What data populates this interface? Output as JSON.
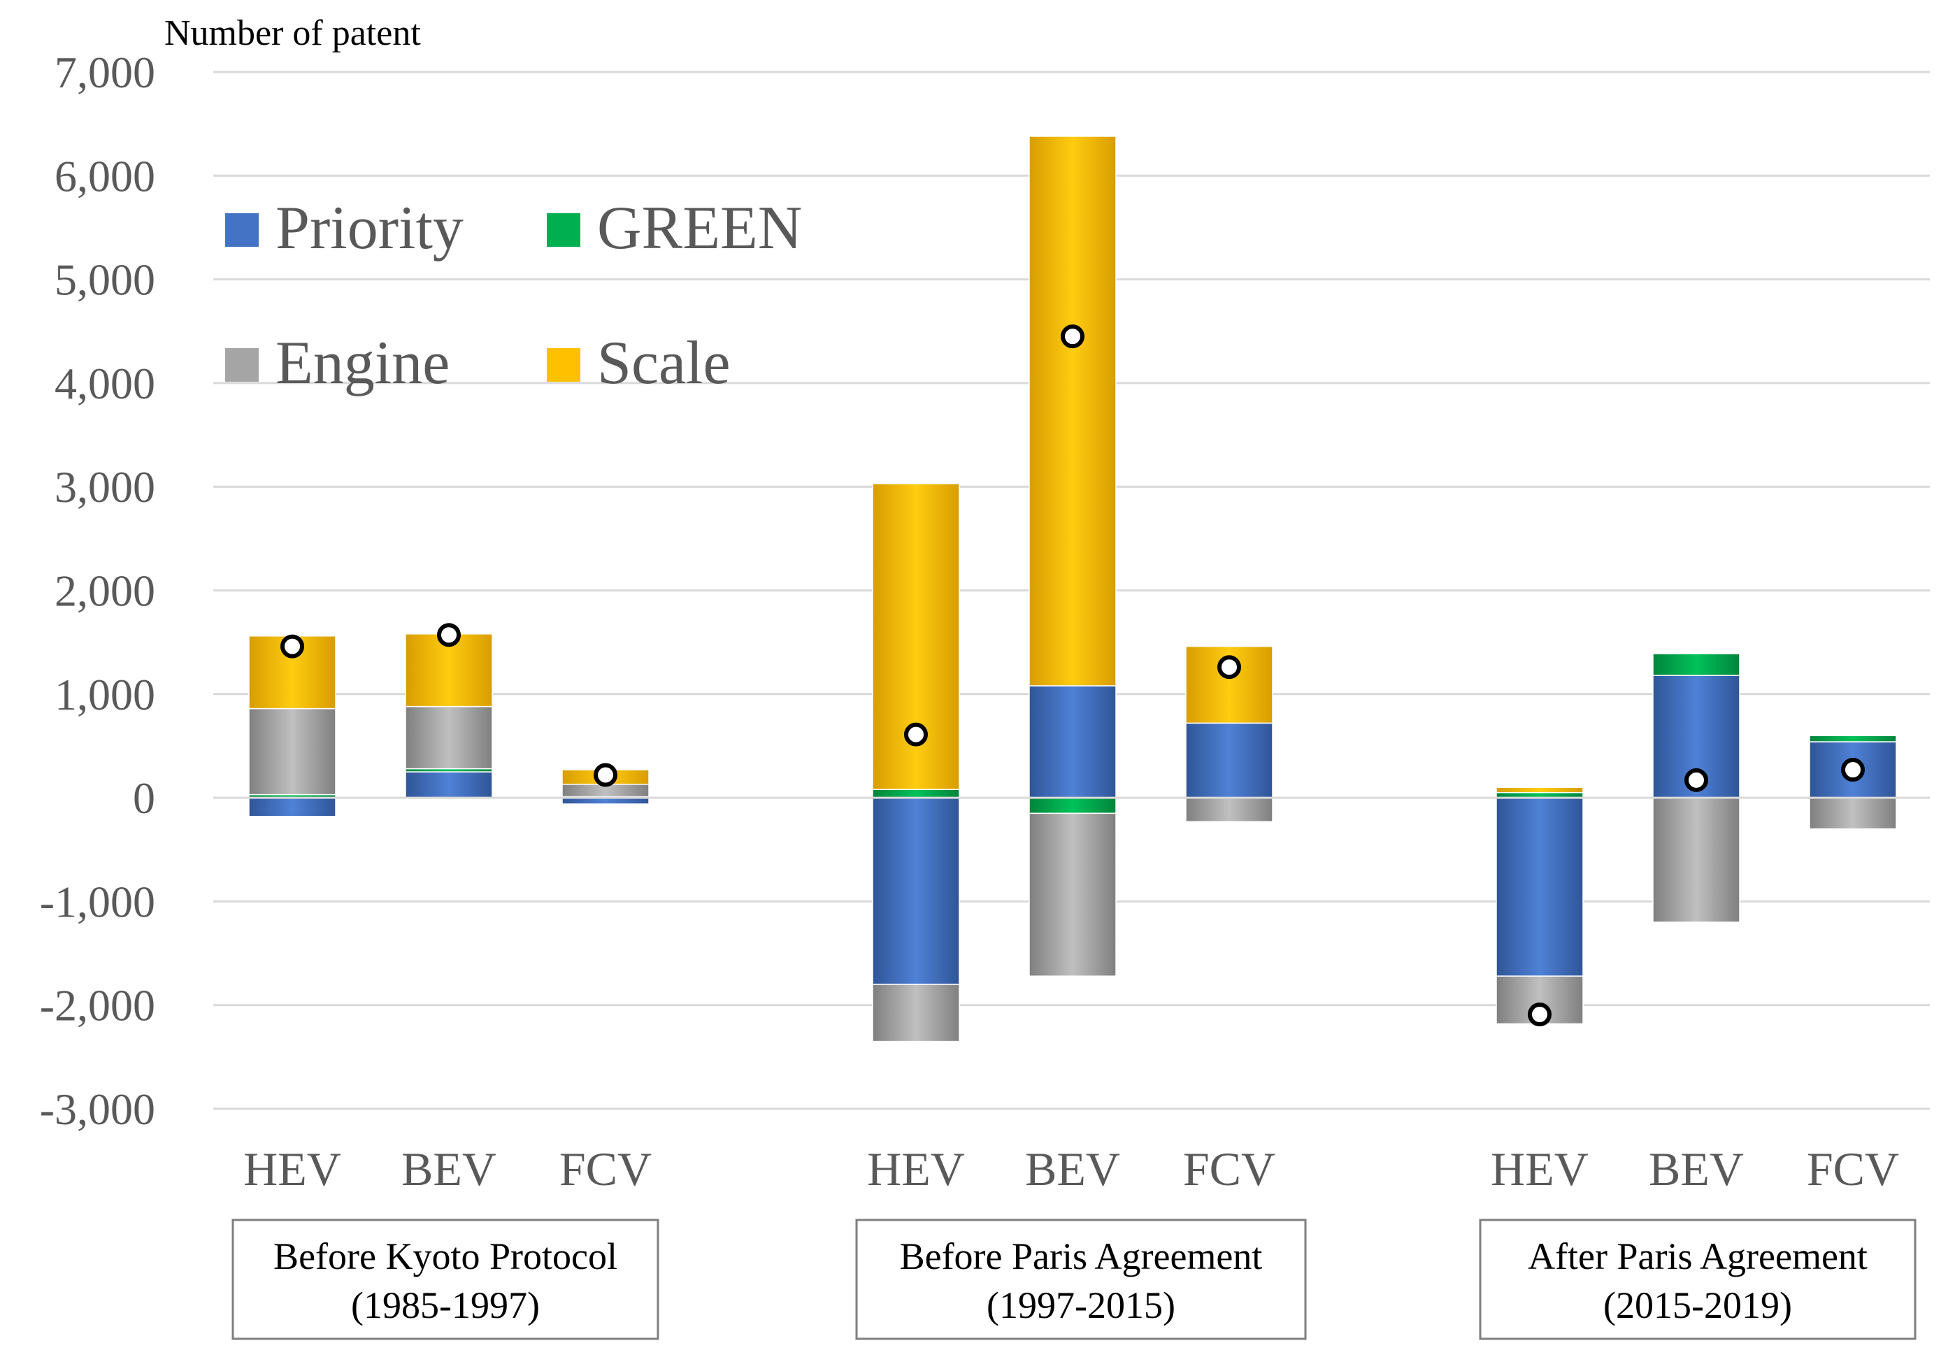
{
  "chart_data": {
    "type": "bar",
    "stacked": true,
    "ylabel": "Number of patent",
    "ylim": [
      -3000,
      7000
    ],
    "yticks": [
      7000,
      6000,
      5000,
      4000,
      3000,
      2000,
      1000,
      0,
      -1000,
      -2000,
      -3000
    ],
    "ytick_labels": [
      "7,000",
      "6,000",
      "5,000",
      "4,000",
      "3,000",
      "2,000",
      "1,000",
      "0",
      "-1,000",
      "-2,000",
      "-3,000"
    ],
    "grid": true,
    "legend_position": "top-left",
    "groups": [
      {
        "label_line1": "Before Kyoto Protocol",
        "label_line2": "(1985-1997)"
      },
      {
        "label_line1": "Before Paris Agreement",
        "label_line2": "(1997-2015)"
      },
      {
        "label_line1": "After Paris Agreement",
        "label_line2": "(2015-2019)"
      }
    ],
    "categories": [
      "HEV",
      "BEV",
      "FCV",
      "HEV",
      "BEV",
      "FCV",
      "HEV",
      "BEV",
      "FCV"
    ],
    "category_group": [
      0,
      0,
      0,
      1,
      1,
      1,
      2,
      2,
      2
    ],
    "series": [
      {
        "name": "Priority",
        "color": "#4472c4",
        "values": [
          -180,
          250,
          -60,
          -1800,
          1080,
          720,
          -1720,
          1180,
          540
        ]
      },
      {
        "name": "GREEN",
        "color": "#00b050",
        "values": [
          30,
          30,
          10,
          80,
          -150,
          0,
          50,
          210,
          60
        ]
      },
      {
        "name": "Engine",
        "color": "#a5a5a5",
        "values": [
          830,
          600,
          120,
          -550,
          -1570,
          -230,
          -460,
          -1200,
          -300
        ]
      },
      {
        "name": "Scale",
        "color": "#ffc000",
        "values": [
          700,
          700,
          140,
          2950,
          5300,
          740,
          50,
          0,
          0
        ]
      }
    ],
    "total_markers": [
      1460,
      1570,
      220,
      610,
      4450,
      1260,
      -2090,
      170,
      270
    ],
    "legend": [
      {
        "name": "Priority",
        "color": "#4472c4"
      },
      {
        "name": "GREEN",
        "color": "#00b050"
      },
      {
        "name": "Engine",
        "color": "#a5a5a5"
      },
      {
        "name": "Scale",
        "color": "#ffc000"
      }
    ]
  }
}
